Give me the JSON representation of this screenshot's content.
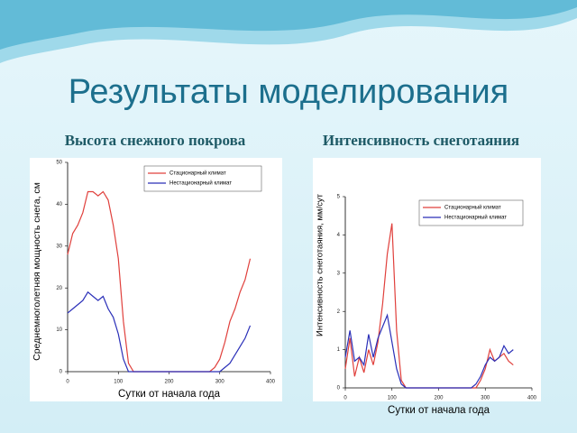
{
  "slide": {
    "title": "Результаты моделирования"
  },
  "chart_data": [
    {
      "type": "line",
      "title": "Высота снежного покрова",
      "x_label": "Сутки от начала года",
      "y_label": "Среднемноголетняя мощность снега, см",
      "x": [
        0,
        10,
        20,
        30,
        40,
        50,
        60,
        70,
        80,
        90,
        100,
        110,
        120,
        130,
        140,
        150,
        160,
        170,
        180,
        190,
        200,
        210,
        220,
        230,
        240,
        250,
        260,
        270,
        280,
        290,
        300,
        310,
        320,
        330,
        340,
        350,
        360
      ],
      "series": [
        {
          "name": "Стационарный климат",
          "color": "#e0403c",
          "values": [
            28,
            33,
            35,
            38,
            43,
            43,
            42,
            43,
            41,
            35,
            27,
            12,
            2,
            0,
            0,
            0,
            0,
            0,
            0,
            0,
            0,
            0,
            0,
            0,
            0,
            0,
            0,
            0,
            0,
            1,
            3,
            7,
            12,
            15,
            19,
            22,
            27
          ]
        },
        {
          "name": "Нестационарный климат",
          "color": "#2a2fb8",
          "values": [
            14,
            15,
            16,
            17,
            19,
            18,
            17,
            18,
            15,
            13,
            9,
            3,
            0,
            0,
            0,
            0,
            0,
            0,
            0,
            0,
            0,
            0,
            0,
            0,
            0,
            0,
            0,
            0,
            0,
            0,
            0,
            1,
            2,
            4,
            6,
            8,
            11
          ]
        }
      ],
      "xlim": [
        0,
        400
      ],
      "xticks": [
        0,
        100,
        200,
        300,
        400
      ],
      "ylim": [
        0,
        50
      ],
      "yticks": [
        0,
        10,
        20,
        30,
        40,
        50
      ],
      "legend": "top-right"
    },
    {
      "type": "line",
      "title": "Интенсивность снеготаяния",
      "x_label": "Сутки от начала года",
      "y_label": "Интенсивность снеготаяния, мм/сут",
      "x": [
        0,
        10,
        20,
        30,
        40,
        50,
        60,
        70,
        80,
        90,
        100,
        110,
        120,
        130,
        140,
        150,
        160,
        170,
        180,
        190,
        200,
        210,
        220,
        230,
        240,
        250,
        260,
        270,
        280,
        290,
        300,
        310,
        320,
        330,
        340,
        350,
        360
      ],
      "series": [
        {
          "name": "Стационарный климат",
          "color": "#e0403c",
          "values": [
            0.5,
            1.3,
            0.3,
            0.8,
            0.4,
            1.0,
            0.6,
            1.2,
            2.2,
            3.5,
            4.3,
            1.5,
            0.2,
            0,
            0,
            0,
            0,
            0,
            0,
            0,
            0,
            0,
            0,
            0,
            0,
            0,
            0,
            0,
            0,
            0.2,
            0.5,
            1.0,
            0.7,
            0.8,
            0.9,
            0.7,
            0.6
          ]
        },
        {
          "name": "Нестационарный климат",
          "color": "#2a2fb8",
          "values": [
            0.8,
            1.5,
            0.7,
            0.8,
            0.6,
            1.4,
            0.8,
            1.3,
            1.6,
            1.9,
            1.2,
            0.5,
            0.1,
            0,
            0,
            0,
            0,
            0,
            0,
            0,
            0,
            0,
            0,
            0,
            0,
            0,
            0,
            0,
            0.1,
            0.3,
            0.6,
            0.8,
            0.7,
            0.8,
            1.1,
            0.9,
            1.0
          ]
        }
      ],
      "xlim": [
        0,
        400
      ],
      "xticks": [
        0,
        100,
        200,
        300,
        400
      ],
      "ylim": [
        0,
        5
      ],
      "yticks": [
        0,
        1,
        2,
        3,
        4,
        5
      ],
      "legend": "top-right"
    }
  ]
}
